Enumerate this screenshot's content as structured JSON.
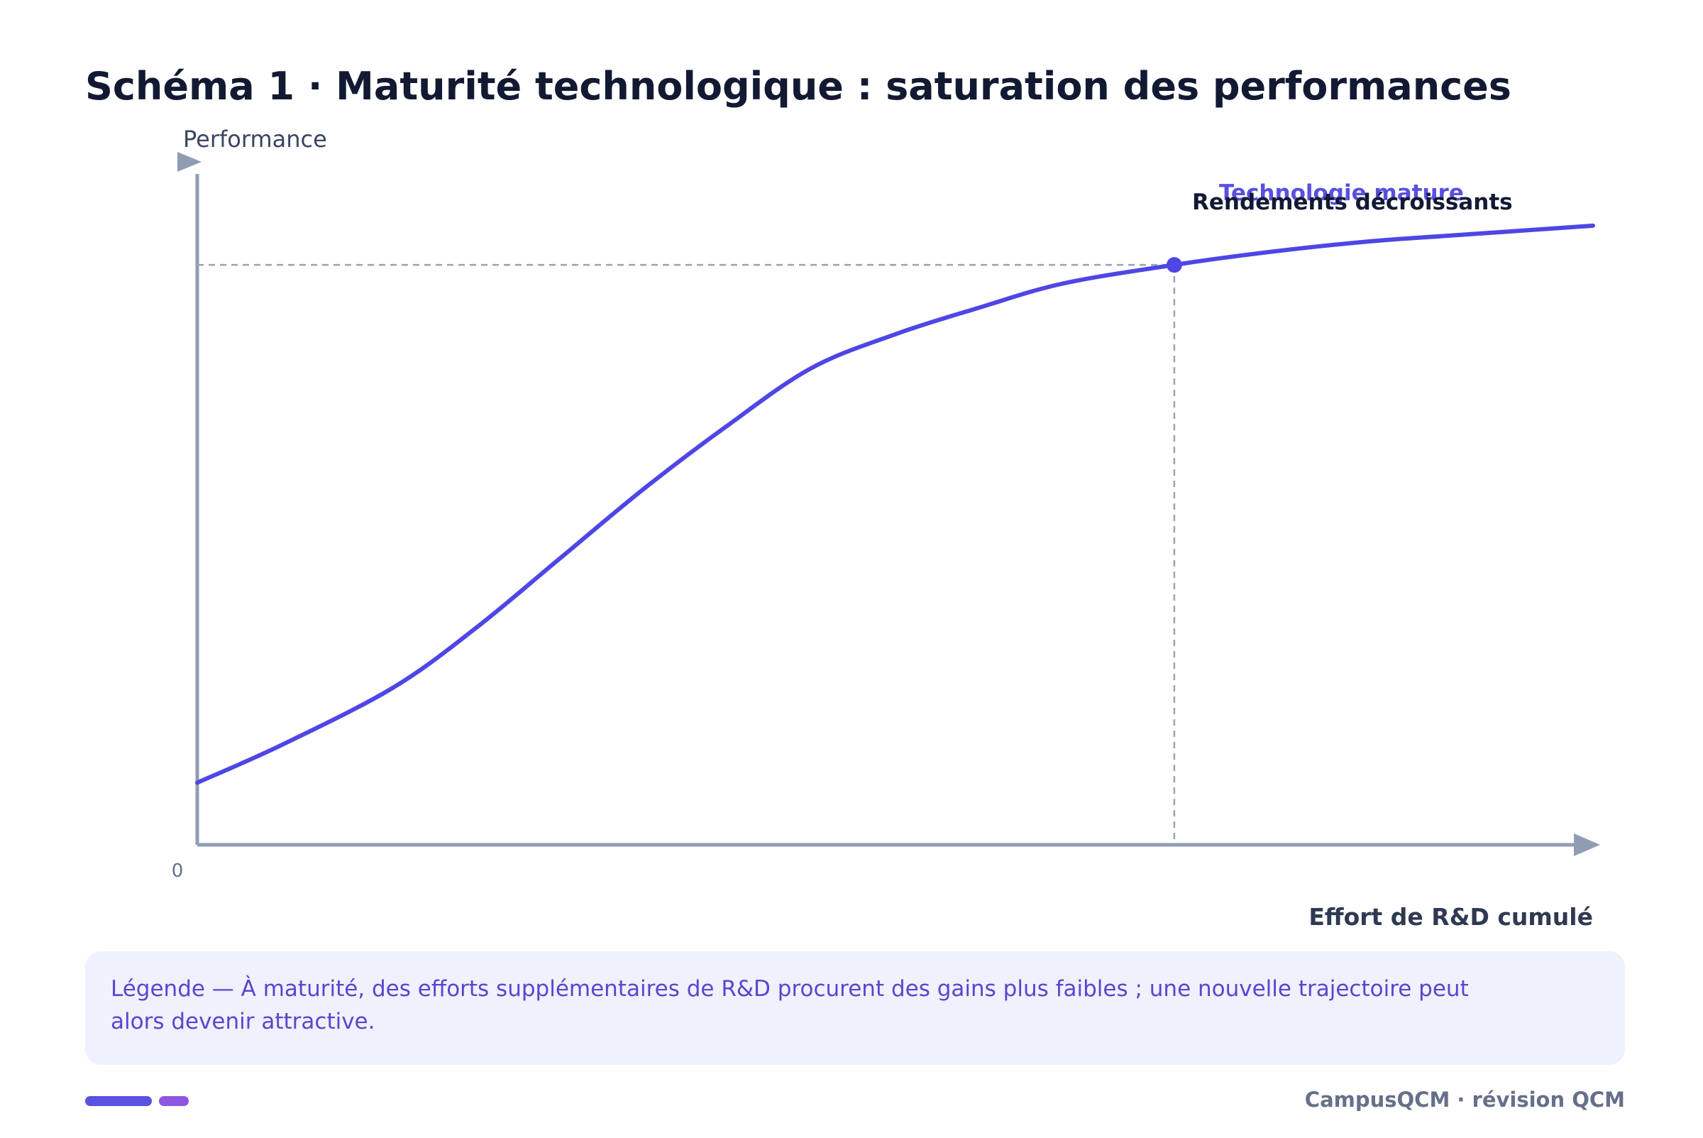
{
  "title": "Schéma 1 · Maturité technologique : saturation des performances",
  "colors": {
    "curve": "#4f46e5",
    "axis": "#8f9db3",
    "guide": "#9ba3b0",
    "label_mature": "#5a4fe0",
    "label_dark": "#121a33",
    "legend_bg": "#eef2fd"
  },
  "chart_data": {
    "type": "line",
    "ylabel": "Performance",
    "xlabel": "Effort de R&D cumulé",
    "origin_label": "0",
    "xlim": [
      0,
      100
    ],
    "ylim": [
      0,
      100
    ],
    "series": [
      {
        "name": "Technologie mature",
        "x": [
          0,
          6,
          14,
          20,
          26,
          32,
          38,
          44,
          50,
          56,
          62,
          70,
          77,
          84,
          90,
          100
        ],
        "y": [
          10.3,
          16.5,
          26,
          36,
          47.5,
          59,
          69.5,
          79,
          84.6,
          89,
          93,
          96.1,
          98.3,
          100,
          101,
          102.6
        ]
      }
    ],
    "marker": {
      "x": 70,
      "y": 96.1,
      "label": "Rendements décroissants"
    },
    "guides": [
      "horizontal-to-y-axis",
      "vertical-to-x-axis"
    ]
  },
  "legend": {
    "text": "Légende — À maturité, des efforts supplémentaires de R&D procurent des gains plus faibles ; une nouvelle trajectoire peut alors devenir attractive."
  },
  "footer": {
    "text": "CampusQCM · révision QCM"
  }
}
